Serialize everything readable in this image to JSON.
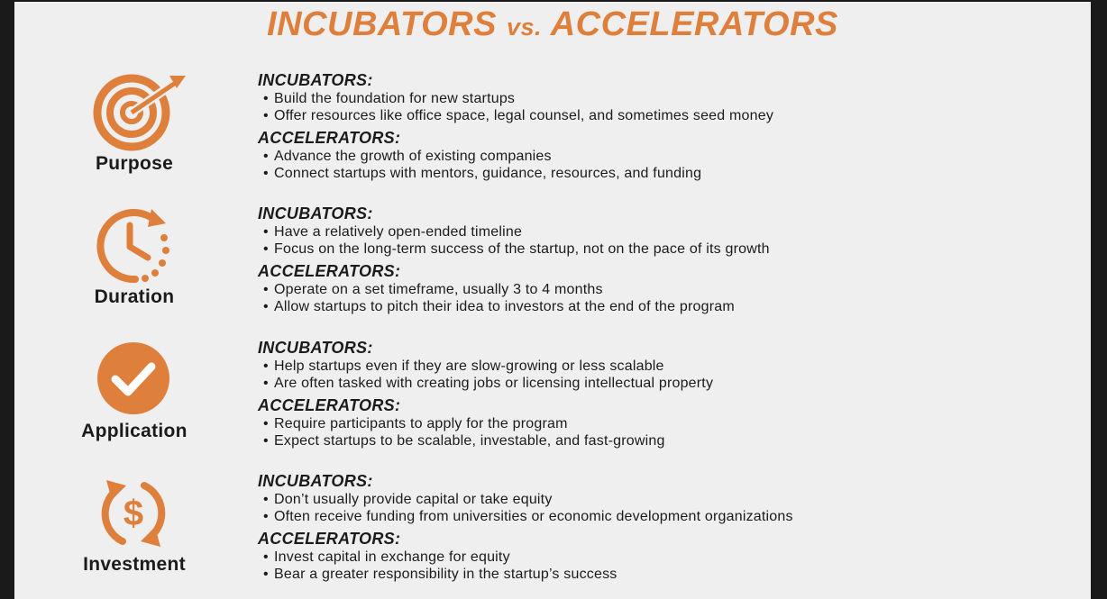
{
  "title": {
    "main1": "INCUBATORS",
    "vs": "vs.",
    "main2": "ACCELERATORS"
  },
  "colors": {
    "accent": "#df7f3c",
    "text": "#1b1b1b",
    "background": "#efeff0"
  },
  "sections": [
    {
      "label": "Purpose",
      "icon": "target-icon",
      "incubators_heading": "INCUBATORS:",
      "incubators": [
        "Build the foundation for new startups",
        "Offer resources like office space, legal counsel, and sometimes seed money"
      ],
      "accelerators_heading": "ACCELERATORS:",
      "accelerators": [
        "Advance the growth of existing companies",
        "Connect startups with mentors, guidance, resources, and funding"
      ]
    },
    {
      "label": "Duration",
      "icon": "clock-icon",
      "incubators_heading": "INCUBATORS:",
      "incubators": [
        "Have a relatively open-ended timeline",
        "Focus on the long-term success of the startup, not on the pace of its growth"
      ],
      "accelerators_heading": "ACCELERATORS:",
      "accelerators": [
        "Operate on a set timeframe, usually 3 to 4 months",
        "Allow startups to pitch their idea to investors at the end of the program"
      ]
    },
    {
      "label": "Application",
      "icon": "checkmark-icon",
      "incubators_heading": "INCUBATORS:",
      "incubators": [
        "Help startups even if they are slow-growing or less scalable",
        "Are often tasked with creating jobs or licensing intellectual property"
      ],
      "accelerators_heading": "ACCELERATORS:",
      "accelerators": [
        "Require participants to apply for the program",
        "Expect startups to be scalable, investable, and fast-growing"
      ]
    },
    {
      "label": "Investment",
      "icon": "dollar-cycle-icon",
      "incubators_heading": "INCUBATORS:",
      "incubators": [
        "Don’t usually provide capital or take equity",
        "Often receive funding from universities or economic development organizations"
      ],
      "accelerators_heading": "ACCELERATORS:",
      "accelerators": [
        "Invest capital in exchange for equity",
        "Bear a greater responsibility in the startup’s success"
      ]
    }
  ]
}
